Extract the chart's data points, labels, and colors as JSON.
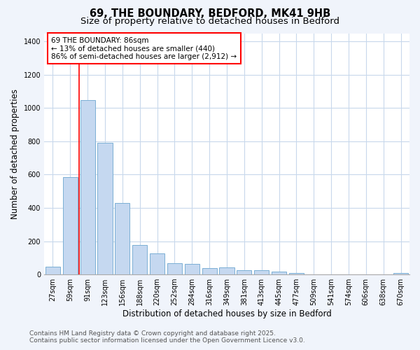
{
  "title1": "69, THE BOUNDARY, BEDFORD, MK41 9HB",
  "title2": "Size of property relative to detached houses in Bedford",
  "xlabel": "Distribution of detached houses by size in Bedford",
  "ylabel": "Number of detached properties",
  "bar_labels": [
    "27sqm",
    "59sqm",
    "91sqm",
    "123sqm",
    "156sqm",
    "188sqm",
    "220sqm",
    "252sqm",
    "284sqm",
    "316sqm",
    "349sqm",
    "381sqm",
    "413sqm",
    "445sqm",
    "477sqm",
    "509sqm",
    "541sqm",
    "574sqm",
    "606sqm",
    "638sqm",
    "670sqm"
  ],
  "bar_values": [
    47,
    585,
    1047,
    793,
    430,
    178,
    128,
    68,
    65,
    40,
    42,
    27,
    25,
    17,
    10,
    0,
    0,
    0,
    0,
    0,
    10
  ],
  "bar_color": "#c5d8f0",
  "bar_edge_color": "#7bafd4",
  "vline_x_index": 2,
  "vline_color": "red",
  "annotation_text_line1": "69 THE BOUNDARY: 86sqm",
  "annotation_text_line2": "← 13% of detached houses are smaller (440)",
  "annotation_text_line3": "86% of semi-detached houses are larger (2,912) →",
  "ylim": [
    0,
    1450
  ],
  "yticks": [
    0,
    200,
    400,
    600,
    800,
    1000,
    1200,
    1400
  ],
  "plot_bg_color": "#ffffff",
  "fig_bg_color": "#f0f4fb",
  "grid_color": "#c8d8ec",
  "footer1": "Contains HM Land Registry data © Crown copyright and database right 2025.",
  "footer2": "Contains public sector information licensed under the Open Government Licence v3.0.",
  "title1_fontsize": 10.5,
  "title2_fontsize": 9.5,
  "xlabel_fontsize": 8.5,
  "ylabel_fontsize": 8.5,
  "tick_fontsize": 7,
  "annotation_fontsize": 7.5,
  "footer_fontsize": 6.5
}
